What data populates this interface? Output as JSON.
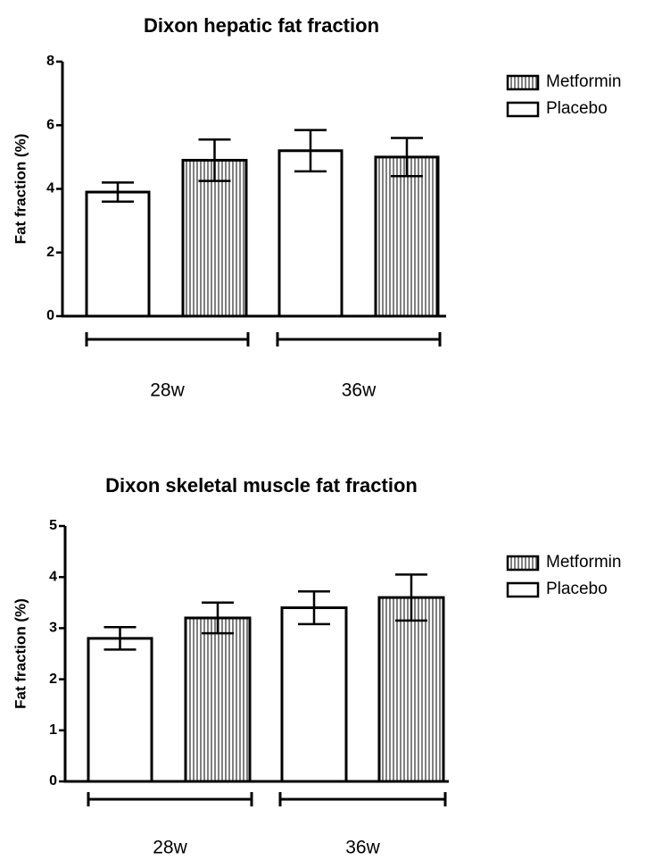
{
  "chart_data": [
    {
      "type": "bar",
      "title": "Dixon hepatic fat fraction",
      "y_label": "Fat fraction (%)",
      "categories": [
        "28w",
        "36w"
      ],
      "series": [
        {
          "name": "Metformin",
          "color": "#000000",
          "pattern": "vertical-lines",
          "values": [
            4.9,
            5.0
          ],
          "errors": [
            0.65,
            0.6
          ]
        },
        {
          "name": "Placebo",
          "color": "#ffffff",
          "pattern": "none",
          "values": [
            3.9,
            5.2
          ],
          "errors": [
            0.3,
            0.65
          ]
        }
      ],
      "ylim": [
        0,
        8
      ],
      "yticks": [
        0,
        2,
        4,
        6,
        8
      ]
    },
    {
      "type": "bar",
      "title": "Dixon skeletal muscle fat fraction",
      "y_label": "Fat fraction (%)",
      "categories": [
        "28w",
        "36w"
      ],
      "series": [
        {
          "name": "Metformin",
          "color": "#000000",
          "pattern": "vertical-lines",
          "values": [
            3.2,
            3.6
          ],
          "errors": [
            0.3,
            0.45
          ]
        },
        {
          "name": "Placebo",
          "color": "#ffffff",
          "pattern": "none",
          "values": [
            2.8,
            3.4
          ],
          "errors": [
            0.22,
            0.32
          ]
        }
      ],
      "ylim": [
        0,
        5
      ],
      "yticks": [
        0,
        1,
        2,
        3,
        4,
        5
      ]
    }
  ]
}
